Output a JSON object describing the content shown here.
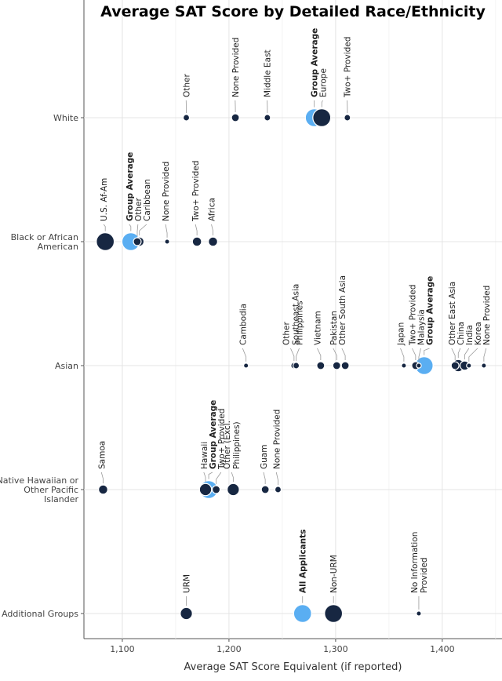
{
  "chart_data": {
    "type": "scatter",
    "title": "Average SAT Score by Detailed Race/Ethnicity",
    "xlabel": "Average SAT Score Equivalent (if reported)",
    "ylabel": "",
    "xlim": [
      1064,
      1456
    ],
    "x_ticks": [
      1100,
      1200,
      1300,
      1400
    ],
    "x_tick_labels": [
      "1,100",
      "1,200",
      "1,300",
      "1,400"
    ],
    "grid": true,
    "size_encoding": "relative group size (marker size, approximate)",
    "colors": {
      "group_average": "#5aaef2",
      "subgroup": "#172742"
    },
    "categories": [
      "White",
      "Black or African American",
      "Asian",
      "Native Hawaiian or Other Pacific Islander",
      "Additional Groups"
    ],
    "groups": [
      {
        "name": "White",
        "label_lines": [
          "White"
        ],
        "points": [
          {
            "label": "Other",
            "x": 1160,
            "size": 2,
            "bold": false,
            "avg": false
          },
          {
            "label": "None Provided",
            "x": 1206,
            "size": 3,
            "bold": false,
            "avg": false
          },
          {
            "label": "Middle East",
            "x": 1236,
            "size": 2,
            "bold": false,
            "avg": false
          },
          {
            "label": "Group Average",
            "x": 1280,
            "size": 10,
            "bold": true,
            "avg": true
          },
          {
            "label": "Europe",
            "x": 1287,
            "size": 10,
            "bold": false,
            "avg": false
          },
          {
            "label": "Two+ Provided",
            "x": 1311,
            "size": 2,
            "bold": false,
            "avg": false
          }
        ]
      },
      {
        "name": "Black or African American",
        "label_lines": [
          "Black or African",
          "American"
        ],
        "points": [
          {
            "label": "U.S. Af-Am",
            "x": 1084,
            "size": 10,
            "bold": false,
            "avg": false
          },
          {
            "label": "Group Average",
            "x": 1108,
            "size": 10,
            "bold": true,
            "avg": true
          },
          {
            "label": "Other",
            "x": 1114,
            "size": 3,
            "bold": false,
            "avg": false
          },
          {
            "label": "Caribbean",
            "x": 1116,
            "size": 4,
            "bold": false,
            "avg": false
          },
          {
            "label": "None Provided",
            "x": 1142,
            "size": 1,
            "bold": false,
            "avg": false
          },
          {
            "label": "Two+ Provided",
            "x": 1170,
            "size": 4,
            "bold": false,
            "avg": false
          },
          {
            "label": "Africa",
            "x": 1185,
            "size": 4,
            "bold": false,
            "avg": false
          }
        ]
      },
      {
        "name": "Asian",
        "label_lines": [
          "Asian"
        ],
        "points": [
          {
            "label": "Cambodia",
            "x": 1216,
            "size": 1,
            "bold": false,
            "avg": false
          },
          {
            "label": "Other Southeast Asia",
            "x": 1261,
            "size": 2,
            "bold": false,
            "avg": false
          },
          {
            "label": "Philippines",
            "x": 1263,
            "size": 2,
            "bold": false,
            "avg": false
          },
          {
            "label": "Vietnam",
            "x": 1286,
            "size": 3,
            "bold": false,
            "avg": false
          },
          {
            "label": "Pakistan",
            "x": 1301,
            "size": 3,
            "bold": false,
            "avg": false
          },
          {
            "label": "Other South Asia",
            "x": 1309,
            "size": 3,
            "bold": false,
            "avg": false
          },
          {
            "label": "Japan",
            "x": 1364,
            "size": 1,
            "bold": false,
            "avg": false
          },
          {
            "label": "Two+ Provided",
            "x": 1375,
            "size": 3,
            "bold": false,
            "avg": false
          },
          {
            "label": "Malaysia",
            "x": 1378,
            "size": 1,
            "bold": false,
            "avg": false
          },
          {
            "label": "Group Average",
            "x": 1383,
            "size": 10,
            "bold": true,
            "avg": true
          },
          {
            "label": "Other East Asia",
            "x": 1412,
            "size": 3,
            "bold": false,
            "avg": false
          },
          {
            "label": "China",
            "x": 1415,
            "size": 6,
            "bold": false,
            "avg": false
          },
          {
            "label": "India",
            "x": 1421,
            "size": 4,
            "bold": false,
            "avg": false
          },
          {
            "label": "Korea",
            "x": 1425,
            "size": 1,
            "bold": false,
            "avg": false
          },
          {
            "label": "None Provided",
            "x": 1439,
            "size": 1,
            "bold": false,
            "avg": false
          }
        ]
      },
      {
        "name": "Native Hawaiian or Other Pacific Islander",
        "label_lines": [
          "Native Hawaiian or",
          "Other Pacific",
          "Islander"
        ],
        "points": [
          {
            "label": "Samoa",
            "x": 1082,
            "size": 4,
            "bold": false,
            "avg": false
          },
          {
            "label": "Hawaii",
            "x": 1178,
            "size": 6,
            "bold": false,
            "avg": false
          },
          {
            "label": "Group Average",
            "x": 1181,
            "size": 10,
            "bold": true,
            "avg": true
          },
          {
            "label": "Two+ Provided",
            "x": 1188,
            "size": 3,
            "bold": false,
            "avg": false
          },
          {
            "label": "Other (Excl. Philippines)",
            "x": 1204,
            "size": 6,
            "bold": false,
            "avg": false
          },
          {
            "label": "Guam",
            "x": 1234,
            "size": 3,
            "bold": false,
            "avg": false
          },
          {
            "label": "None Provided",
            "x": 1246,
            "size": 2,
            "bold": false,
            "avg": false
          }
        ]
      },
      {
        "name": "Additional Groups",
        "label_lines": [
          "Additional Groups"
        ],
        "points": [
          {
            "label": "URM",
            "x": 1160,
            "size": 6,
            "bold": false,
            "avg": false
          },
          {
            "label": "All Applicants",
            "x": 1269,
            "size": 10,
            "bold": true,
            "avg": true
          },
          {
            "label": "Non-URM",
            "x": 1298,
            "size": 10,
            "bold": false,
            "avg": false
          },
          {
            "label": "No Information Provided",
            "x": 1378,
            "size": 1,
            "bold": false,
            "avg": false
          }
        ]
      }
    ]
  }
}
